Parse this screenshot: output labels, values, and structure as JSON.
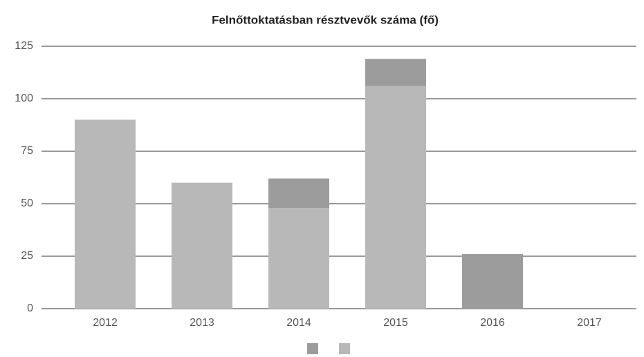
{
  "chart_data": {
    "type": "bar",
    "stacked": true,
    "title": "Felnőttoktatásban résztvevők száma (fő)",
    "categories": [
      "2012",
      "2013",
      "2014",
      "2015",
      "2016",
      "2017"
    ],
    "series": [
      {
        "color": "#9c9c9c",
        "values": [
          0,
          0,
          14,
          13,
          26,
          0
        ]
      },
      {
        "color": "#b8b8b8",
        "values": [
          90,
          60,
          48,
          106,
          0,
          0
        ]
      }
    ],
    "ylim": [
      0,
      125
    ],
    "yticks": [
      0,
      25,
      50,
      75,
      100,
      125
    ],
    "grid": true
  }
}
